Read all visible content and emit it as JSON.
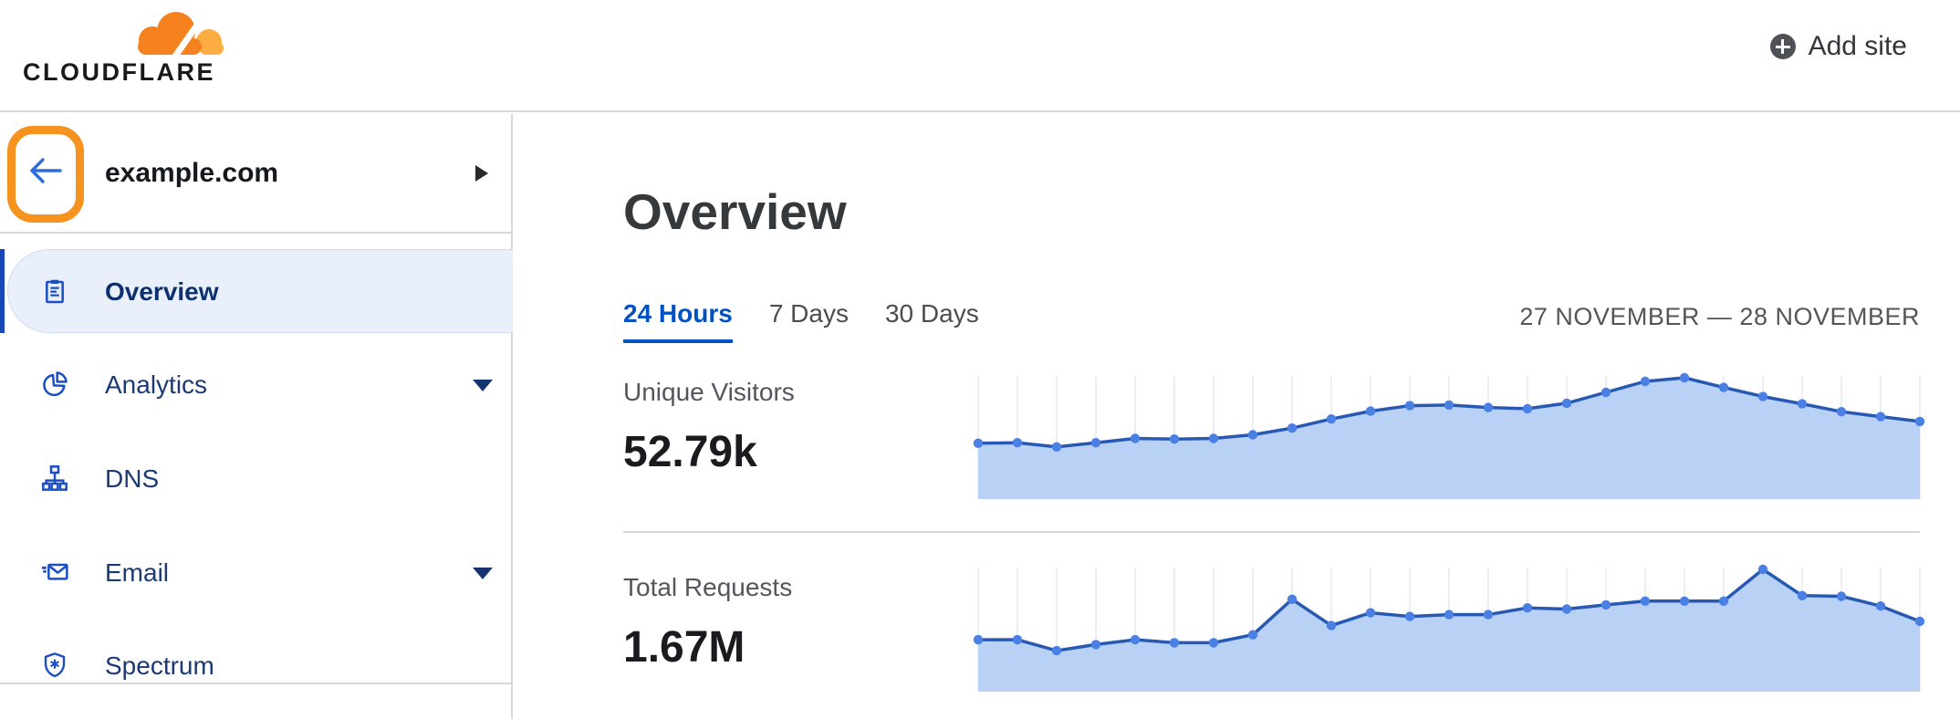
{
  "header": {
    "logo_text": "CLOUDFLARE",
    "add_site_label": "Add site"
  },
  "sidebar": {
    "site": {
      "name": "example.com"
    },
    "items": [
      {
        "label": "Overview",
        "icon": "clipboard-icon",
        "active": true,
        "expandable": false
      },
      {
        "label": "Analytics",
        "icon": "pie-chart-icon",
        "active": false,
        "expandable": true
      },
      {
        "label": "DNS",
        "icon": "network-icon",
        "active": false,
        "expandable": false
      },
      {
        "label": "Email",
        "icon": "envelope-icon",
        "active": false,
        "expandable": true
      },
      {
        "label": "Spectrum",
        "icon": "shield-icon",
        "active": false,
        "expandable": false
      }
    ]
  },
  "main": {
    "title": "Overview",
    "tabs": [
      {
        "label": "24 Hours",
        "active": true
      },
      {
        "label": "7 Days",
        "active": false
      },
      {
        "label": "30 Days",
        "active": false
      }
    ],
    "date_range": "27 NOVEMBER — 28 NOVEMBER",
    "metrics": [
      {
        "label": "Unique Visitors",
        "value": "52.79k"
      },
      {
        "label": "Total Requests",
        "value": "1.67M"
      }
    ]
  },
  "chart_data": [
    {
      "type": "area",
      "title": "Unique Visitors (24 Hours)",
      "total_shown": "52.79k",
      "xlabel": "",
      "ylabel": "",
      "axis_labels_visible": false,
      "grid": "vertical gridlines at each point",
      "x": [
        0,
        1,
        2,
        3,
        4,
        5,
        6,
        7,
        8,
        9,
        10,
        11,
        12,
        13,
        14,
        15,
        16,
        17,
        18,
        19,
        20,
        21,
        22,
        23,
        24
      ],
      "values": [
        46,
        46.5,
        43,
        46.5,
        50,
        49.5,
        50,
        53,
        58.5,
        66,
        72.5,
        77,
        77.5,
        75.5,
        74.5,
        79,
        88,
        97,
        100,
        92,
        84.5,
        78.5,
        72,
        68,
        64
      ],
      "value_units": "percent of chart peak (no y-axis labels shown)",
      "ylim": [
        0,
        100
      ]
    },
    {
      "type": "area",
      "title": "Total Requests (24 Hours)",
      "total_shown": "1.67M",
      "xlabel": "",
      "ylabel": "",
      "axis_labels_visible": false,
      "grid": "vertical gridlines at each point",
      "x": [
        0,
        1,
        2,
        3,
        4,
        5,
        6,
        7,
        8,
        9,
        10,
        11,
        12,
        13,
        14,
        15,
        16,
        17,
        18,
        19,
        20,
        21,
        22,
        23,
        24
      ],
      "values": [
        42.5,
        42.5,
        33.5,
        38.5,
        42.5,
        40,
        40,
        46.5,
        75.5,
        54,
        64.5,
        61.5,
        63,
        63,
        68.5,
        67.5,
        71,
        74,
        74,
        74,
        100,
        78.5,
        78,
        70,
        57.5
      ],
      "value_units": "percent of chart peak (no y-axis labels shown)",
      "ylim": [
        0,
        100
      ]
    }
  ],
  "colors": {
    "cloudflare_orange": "#f6821f",
    "cloudflare_orange_light": "#fbad41",
    "annotation_orange": "#f6921e",
    "active_tab_blue": "#0051c3",
    "nav_icon_blue": "#1b4fc7",
    "nav_text_navy": "#1b3a75",
    "chart_line": "#2759b3",
    "chart_dot": "#4a80e4",
    "chart_fill": "#b9d1f5",
    "chart_grid": "#eceef4",
    "divider_gray": "#d8d8d8"
  }
}
